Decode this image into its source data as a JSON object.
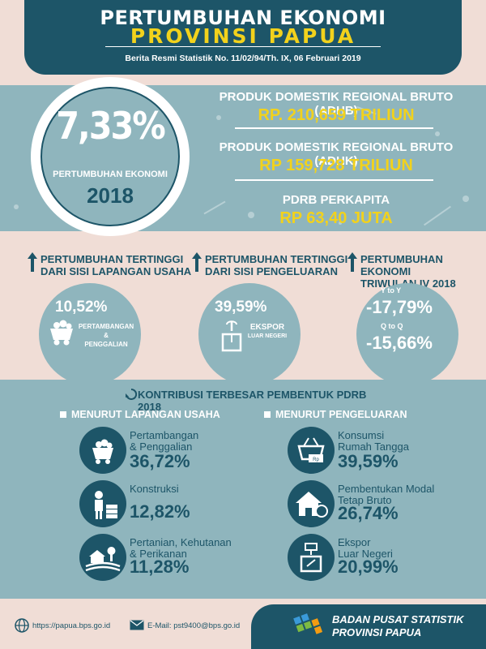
{
  "header": {
    "title_line1": "PERTUMBUHAN EKONOMI",
    "title_line2": "PROVINSI PAPUA",
    "subtitle": "Berita Resmi Statistik No. 11/02/94/Th. IX, 06 Februari 2019"
  },
  "growth": {
    "value": "7,33%",
    "label": "PERTUMBUHAN EKONOMI",
    "year": "2018"
  },
  "pdrb": [
    {
      "label": "PRODUK DOMESTIK REGIONAL BRUTO (ADHB)",
      "value": "RP. 210,659 TRILIUN"
    },
    {
      "label": "PRODUK DOMESTIK REGIONAL BRUTO (ADHK)",
      "value": "RP 159,728 TRILIUN"
    },
    {
      "label": "PDRB PERKAPITA",
      "value": "RP 63,40 JUTA"
    }
  ],
  "highlights": {
    "lapangan": {
      "title_line1": "PERTUMBUHAN TERTINGGI",
      "title_line2": "DARI SISI LAPANGAN USAHA",
      "value": "10,52%",
      "desc_line1": "PERTAMBANGAN",
      "desc_line2": "&",
      "desc_line3": "PENGGALIAN"
    },
    "pengeluaran": {
      "title_line1": "PERTUMBUHAN TERTINGGI",
      "title_line2": "DARI SISI PENGELUARAN",
      "value": "39,59%",
      "desc_line1": "EKSPOR",
      "desc_line2": "LUAR NEGERI"
    },
    "triwulan": {
      "title_line1": "PERTUMBUHAN EKONOMI",
      "title_line2": "TRIWULAN IV 2018",
      "yoy_label": "Y to Y",
      "yoy_value": "-17,79%",
      "qtq_label": "Q to Q",
      "qtq_value": "-15,66%"
    }
  },
  "kontribusi": {
    "title": "KONTRIBUSI TERBESAR PEMBENTUK PDRB 2018",
    "lapangan_title": "MENURUT LAPANGAN USAHA",
    "pengeluaran_title": "MENURUT PENGELUARAN",
    "lapangan": [
      {
        "label_line1": "Pertambangan",
        "label_line2": "& Penggalian",
        "value": "36,72%"
      },
      {
        "label_line1": "Konstruksi",
        "label_line2": "",
        "value": "12,82%"
      },
      {
        "label_line1": "Pertanian, Kehutanan",
        "label_line2": "& Perikanan",
        "value": "11,28%"
      }
    ],
    "pengeluaran": [
      {
        "label_line1": "Konsumsi",
        "label_line2": "Rumah Tangga",
        "value": "39,59%"
      },
      {
        "label_line1": "Pembentukan Modal",
        "label_line2": "Tetap Bruto",
        "value": "26,74%"
      },
      {
        "label_line1": "Ekspor",
        "label_line2": "Luar Negeri",
        "value": "20,99%"
      }
    ]
  },
  "footer": {
    "website": "https://papua.bps.go.id",
    "email": "E-Mail: pst9400@bps.go.id",
    "org_line1": "BADAN PUSAT STATISTIK",
    "org_line2": "PROVINSI PAPUA"
  },
  "colors": {
    "primary": "#1d5568",
    "accent": "#f2d21c",
    "band": "#8fb5bd",
    "background": "#f0ddd6"
  }
}
